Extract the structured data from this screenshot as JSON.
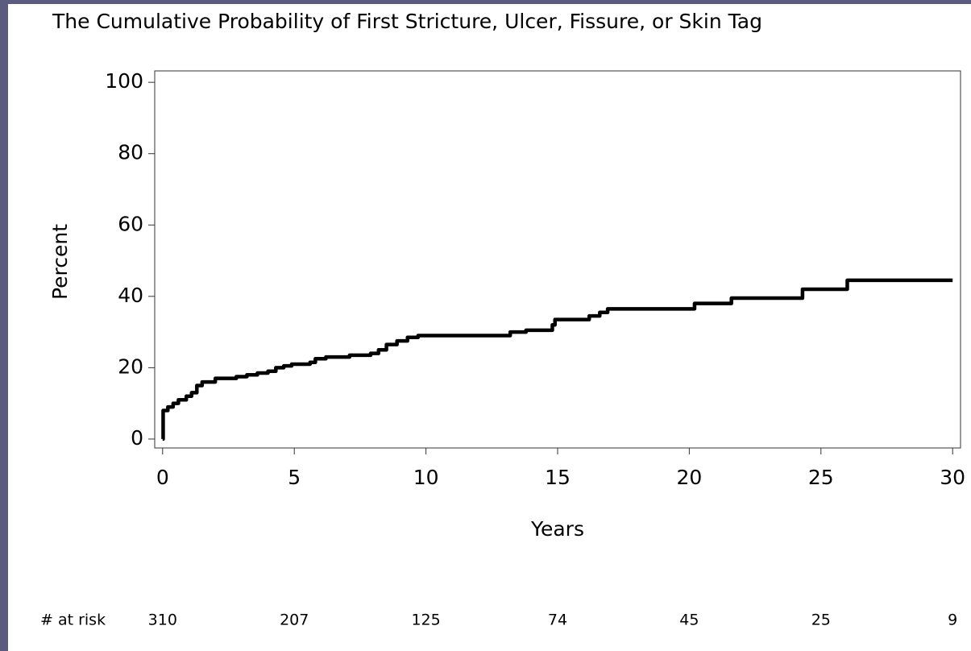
{
  "chart_data": {
    "type": "step",
    "title": "The Cumulative Probability of First Stricture, Ulcer, Fissure, or Skin Tag",
    "x_label": "Years",
    "y_label": "Percent",
    "series": [
      {
        "name": "Cumulative probability",
        "color": "#000000",
        "x": [
          0,
          0.02,
          0.2,
          0.4,
          0.6,
          0.9,
          1.1,
          1.3,
          1.5,
          2,
          2.8,
          3.2,
          3.6,
          4,
          4.3,
          4.6,
          4.9,
          5.6,
          5.8,
          6.2,
          7.1,
          7.9,
          8.2,
          8.5,
          8.9,
          9.3,
          9.7,
          13.2,
          13.8,
          14.8,
          14.9,
          16.2,
          16.6,
          16.9,
          20.2,
          21.6,
          24.3,
          26,
          30
        ],
        "values": [
          0,
          8,
          9,
          10,
          11,
          12,
          13,
          15,
          16,
          17,
          17.5,
          18,
          18.5,
          19,
          20,
          20.5,
          21,
          21.5,
          22.5,
          23,
          23.5,
          24,
          25,
          26.5,
          27.5,
          28.5,
          29,
          30,
          30.5,
          32,
          33.5,
          34.5,
          35.5,
          36.5,
          38,
          39.5,
          42,
          44.5,
          44.5
        ]
      }
    ],
    "xlim": [
      -0.3,
      30.3
    ],
    "xticks": [
      0,
      5,
      10,
      15,
      20,
      25,
      30
    ],
    "ylim": [
      -2.5,
      103.2
    ],
    "yticks": [
      0,
      20,
      40,
      60,
      80,
      100
    ],
    "at_risk": {
      "label": "# at risk",
      "values": [
        310,
        207,
        125,
        74,
        45,
        25,
        9
      ]
    }
  }
}
